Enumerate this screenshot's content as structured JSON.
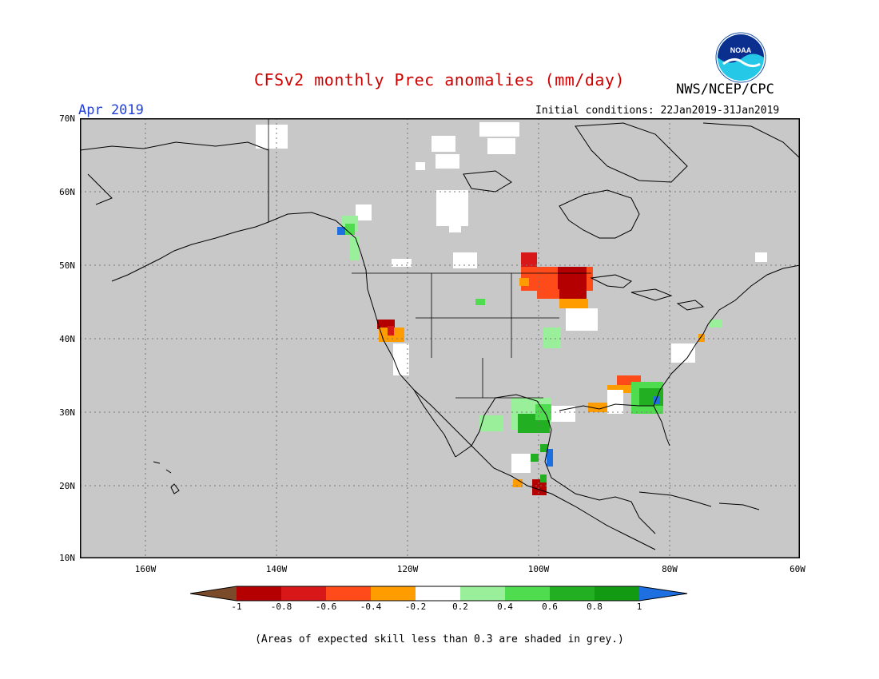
{
  "header": {
    "title": "CFSv2 monthly Prec anomalies (mm/day)",
    "month": "Apr 2019",
    "agency": "NWS/NCEP/CPC",
    "initial_conditions": "Initial conditions: 22Jan2019-31Jan2019",
    "logo_text": "NOAA"
  },
  "map": {
    "background_color": "#c8c8c8",
    "lat_labels": [
      "70N",
      "60N",
      "50N",
      "40N",
      "30N",
      "20N",
      "10N"
    ],
    "lon_labels": [
      "160W",
      "140W",
      "120W",
      "100W",
      "80W",
      "60W"
    ],
    "lat_range": [
      10,
      70
    ],
    "lon_range": [
      -170,
      -60
    ]
  },
  "colorbar": {
    "ticks": [
      "-1",
      "-0.8",
      "-0.6",
      "-0.4",
      "-0.2",
      "0.2",
      "0.4",
      "0.6",
      "0.8",
      "1"
    ],
    "colors": [
      "#7a4a2a",
      "#b40000",
      "#d81818",
      "#ff4a1a",
      "#ff9c00",
      "#ffffff",
      "#9af09a",
      "#4fdc4f",
      "#22b022",
      "#139a13",
      "#1e6fe0"
    ]
  },
  "footnote": "(Areas of expected skill less than 0.3 are shaded in grey.)"
}
